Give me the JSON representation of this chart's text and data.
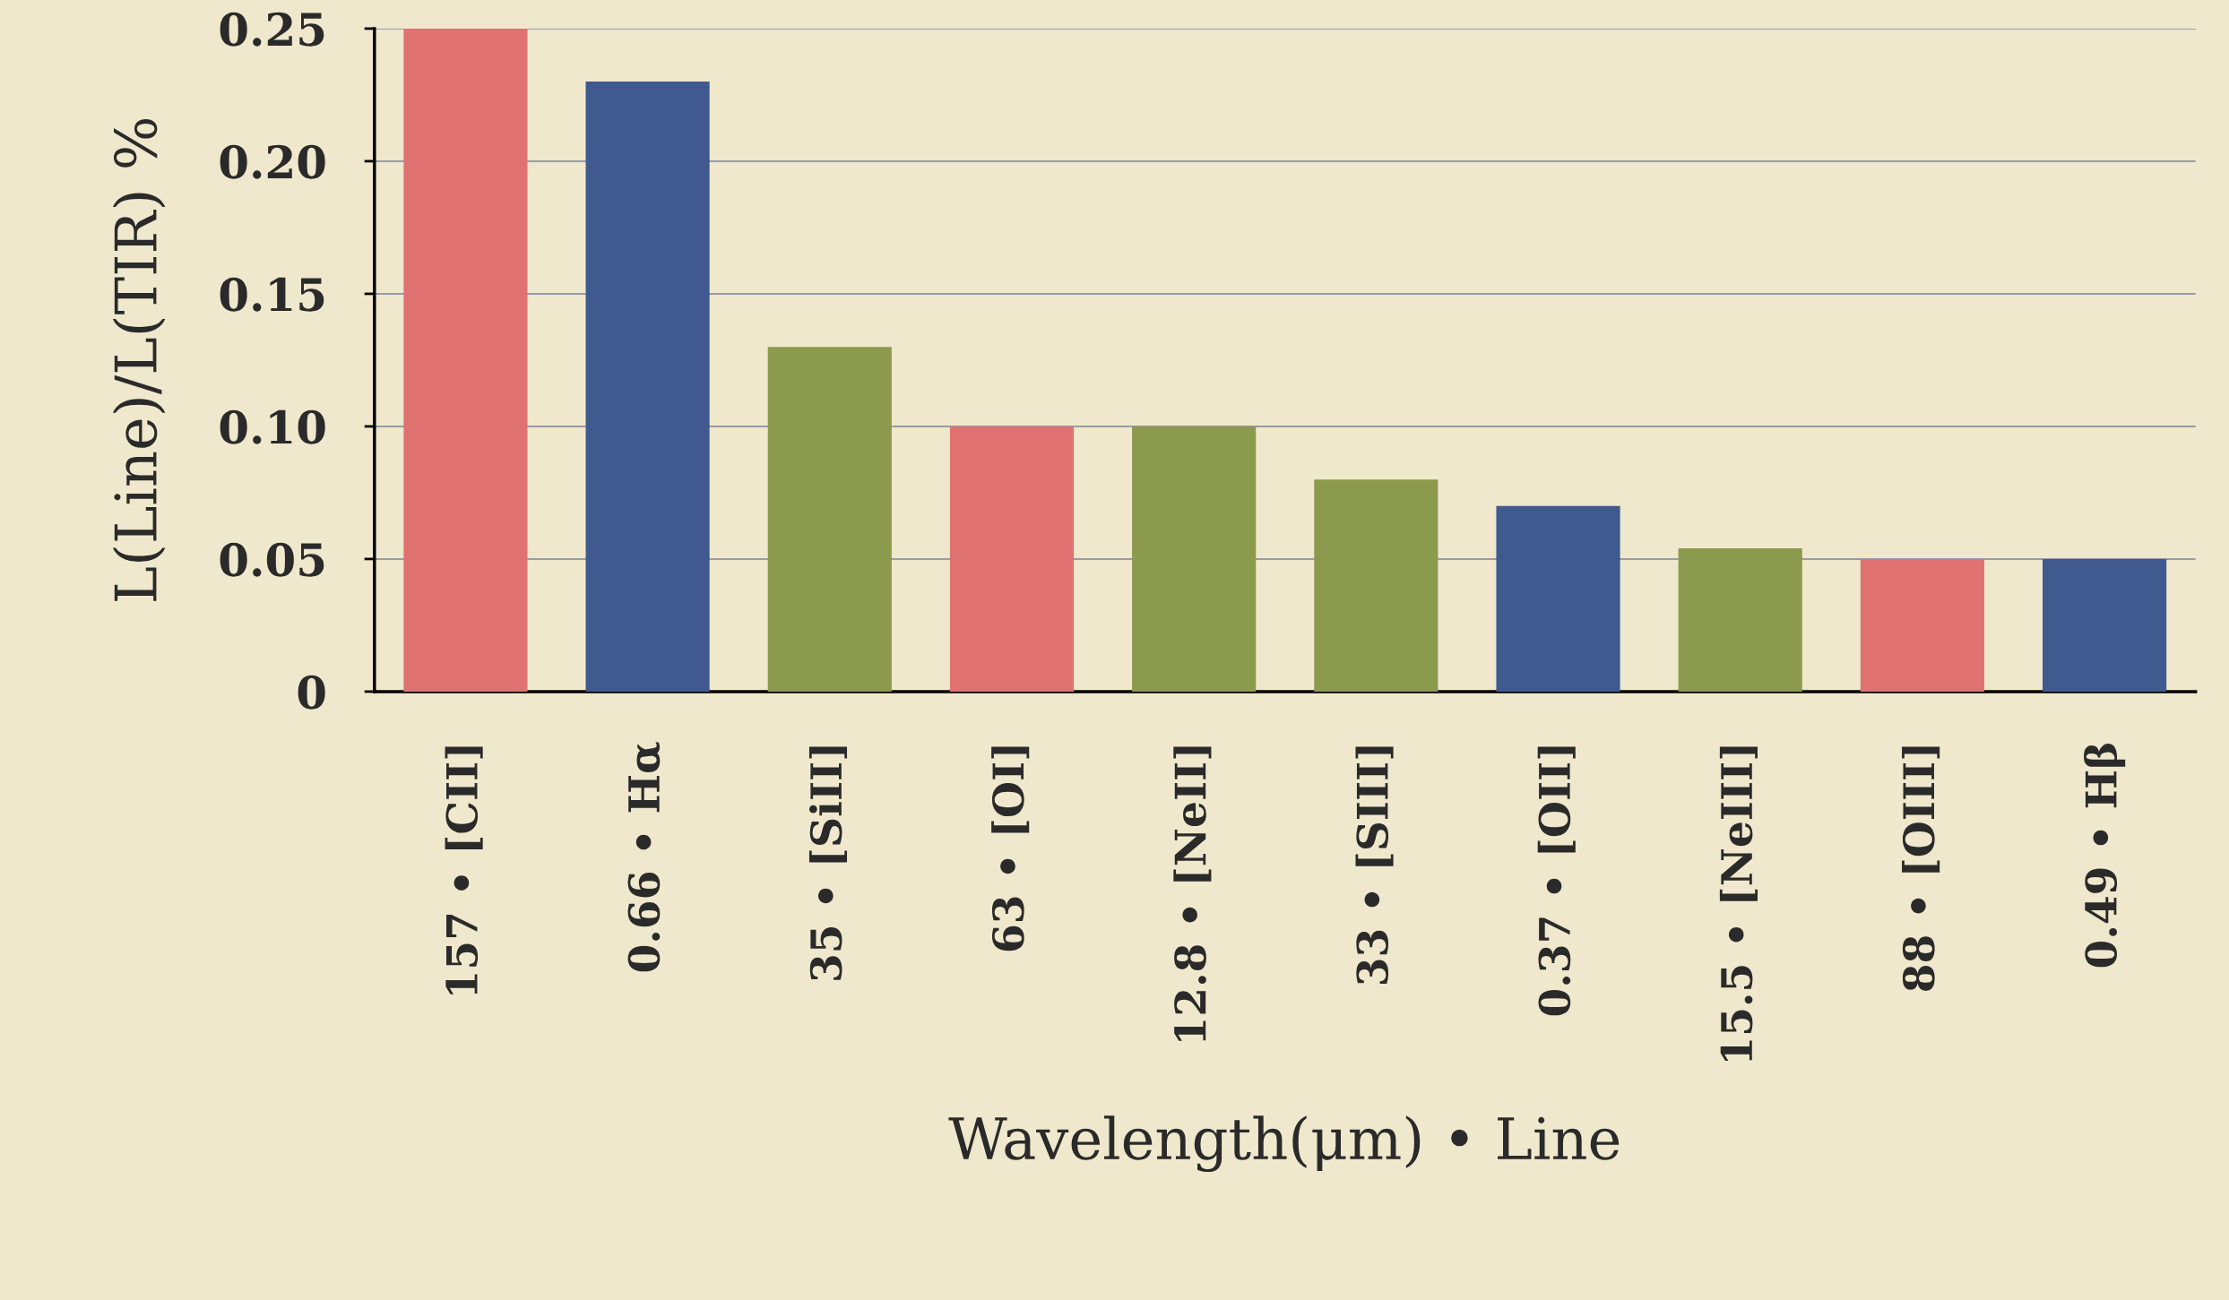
{
  "chart_data": {
    "type": "bar",
    "xlabel": "Wavelength(μm) • Line",
    "ylabel": "L(Line)/L(TIR) %",
    "categories": [
      "157 • [CII]",
      "0.66 • Hα",
      "35 • [SiII]",
      "63 • [OI]",
      "12.8 • [NeII]",
      "33 • [SIII]",
      "0.37 • [OII]",
      "15.5 • [NeIII]",
      "88 • [OIII]",
      "0.49 • Hβ"
    ],
    "values": [
      0.25,
      0.23,
      0.13,
      0.1,
      0.1,
      0.08,
      0.07,
      0.054,
      0.05,
      0.05
    ],
    "colors": [
      "#e07272",
      "#40598f",
      "#8b9a4c",
      "#e07272",
      "#8b9a4c",
      "#8b9a4c",
      "#40598f",
      "#8b9a4c",
      "#e07272",
      "#40598f"
    ],
    "ylim": [
      0,
      0.25
    ],
    "yticks": [
      0,
      {
        "value": 0.05,
        "label": "0.05"
      },
      {
        "value": 0.1,
        "label": "0.10"
      },
      {
        "value": 0.15,
        "label": "0.15"
      },
      {
        "value": 0.2,
        "label": "0.20"
      },
      {
        "value": 0.25,
        "label": "0.25"
      }
    ],
    "grid": "y"
  }
}
